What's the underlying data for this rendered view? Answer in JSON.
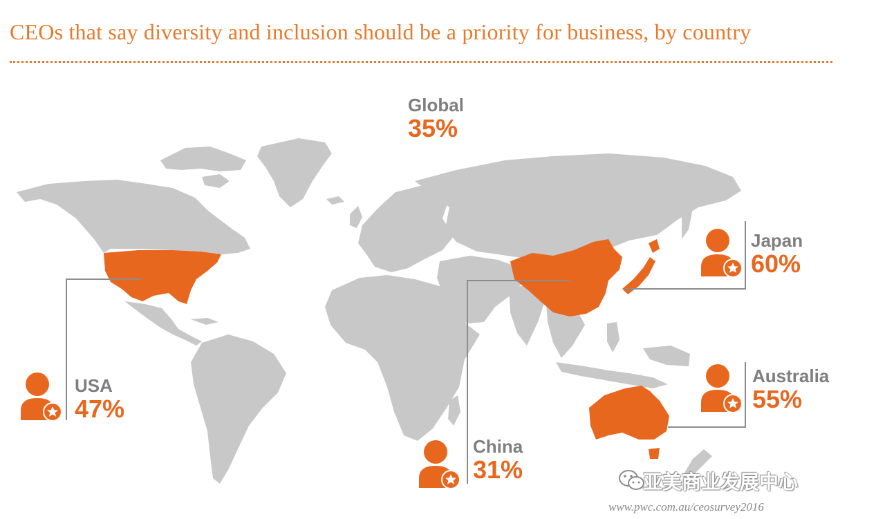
{
  "title": "CEOs that say diversity and inclusion should be a priority for business, by country",
  "colors": {
    "accent": "#e8671f",
    "land": "#c8c8c8",
    "label_gray": "#7f7f7f",
    "leader_line": "#8c8c8c"
  },
  "global": {
    "label": "Global",
    "value": "35%"
  },
  "countries": [
    {
      "name": "USA",
      "value": "47%",
      "icon": "ceo-person-star-icon",
      "highlighted": true
    },
    {
      "name": "China",
      "value": "31%",
      "icon": "ceo-person-star-icon",
      "highlighted": true
    },
    {
      "name": "Japan",
      "value": "60%",
      "icon": "ceo-person-star-icon",
      "highlighted": true
    },
    {
      "name": "Australia",
      "value": "55%",
      "icon": "ceo-person-star-icon",
      "highlighted": true
    }
  ],
  "watermark": {
    "brand": "亚美商业发展中心",
    "icon": "wechat-icon"
  },
  "source_url": "www.pwc.com.au/ceosurvey2016"
}
